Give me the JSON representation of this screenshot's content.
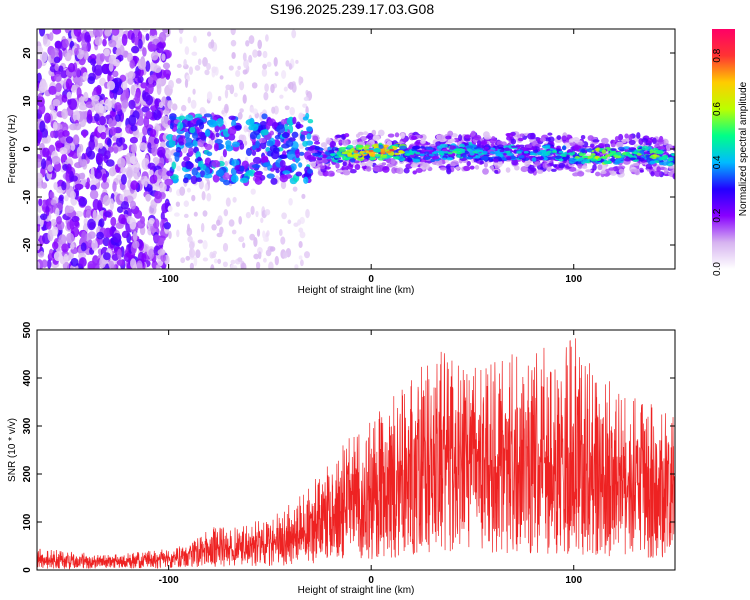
{
  "title": "S196.2025.239.17.03.G08",
  "colors": {
    "snr_line": "#ee2222",
    "axis": "#000000",
    "background": "#ffffff"
  },
  "chart_data": [
    {
      "type": "heatmap",
      "title": "S196.2025.239.17.03.G08",
      "xlabel": "Height of straight line (km)",
      "ylabel": "Frequency (Hz)",
      "xlim": [
        -165,
        150
      ],
      "ylim": [
        -25,
        25
      ],
      "x_ticks": [
        -100,
        0,
        100
      ],
      "x_tick_labels": [
        "-100",
        "0",
        "100"
      ],
      "y_ticks": [
        -20,
        -10,
        0,
        10,
        20
      ],
      "y_tick_labels": [
        "-20",
        "-10",
        "0",
        "10",
        "20"
      ],
      "colorbar": {
        "label": "Normalized spectral amplitude",
        "range": [
          0.0,
          0.9
        ],
        "ticks": [
          0.0,
          0.2,
          0.4,
          0.6,
          0.8
        ],
        "tick_labels": [
          "0.0",
          "0.2",
          "0.4",
          "0.6",
          "0.8"
        ],
        "colormap": [
          "#ffffff",
          "#d6b3f0",
          "#8800ff",
          "#2200ff",
          "#00bbff",
          "#00ff88",
          "#bbff00",
          "#ffcc00",
          "#ff3333",
          "#ff0066"
        ]
      },
      "ridge": {
        "description_values": "dominant frequency near 0 Hz for heights above -30 km",
        "x": [
          -30,
          -20,
          -10,
          0,
          10,
          20,
          30,
          40,
          50,
          60,
          70,
          80,
          90,
          100,
          110,
          120,
          130,
          140,
          150
        ],
        "freq": [
          -1,
          -1.5,
          -1,
          -0.5,
          -0.5,
          -1,
          -1,
          -0.5,
          -0.5,
          -1,
          -0.5,
          -1,
          -0.5,
          -1.5,
          -1.5,
          -1.5,
          -1,
          -1.5,
          -2
        ],
        "amplitude": [
          0.35,
          0.45,
          0.75,
          0.85,
          0.85,
          0.5,
          0.45,
          0.55,
          0.5,
          0.45,
          0.5,
          0.45,
          0.5,
          0.55,
          0.7,
          0.6,
          0.55,
          0.65,
          0.5
        ]
      }
    },
    {
      "type": "line",
      "xlabel": "Height of straight line (km)",
      "ylabel": "SNR (10 * v/v)",
      "xlim": [
        -165,
        150
      ],
      "ylim": [
        0,
        500
      ],
      "x_ticks": [
        -100,
        0,
        100
      ],
      "x_tick_labels": [
        "-100",
        "0",
        "100"
      ],
      "y_ticks": [
        0,
        100,
        200,
        300,
        400,
        500
      ],
      "y_tick_labels": [
        "0",
        "100",
        "200",
        "300",
        "400",
        "500"
      ],
      "series": [
        {
          "name": "SNR",
          "x": [
            -165,
            -150,
            -140,
            -130,
            -120,
            -110,
            -100,
            -90,
            -80,
            -70,
            -60,
            -50,
            -40,
            -30,
            -20,
            -10,
            0,
            10,
            20,
            30,
            40,
            50,
            60,
            70,
            80,
            90,
            100,
            110,
            120,
            130,
            140,
            150
          ],
          "mean": [
            18,
            18,
            17,
            17,
            18,
            20,
            24,
            30,
            38,
            45,
            50,
            55,
            60,
            85,
            110,
            130,
            140,
            160,
            190,
            215,
            225,
            220,
            215,
            220,
            225,
            215,
            210,
            195,
            185,
            175,
            170,
            170
          ],
          "peak": [
            45,
            40,
            35,
            32,
            35,
            40,
            45,
            55,
            90,
            90,
            105,
            110,
            140,
            185,
            230,
            280,
            310,
            360,
            400,
            470,
            440,
            430,
            430,
            460,
            480,
            450,
            500,
            420,
            390,
            360,
            350,
            330
          ]
        }
      ]
    }
  ]
}
